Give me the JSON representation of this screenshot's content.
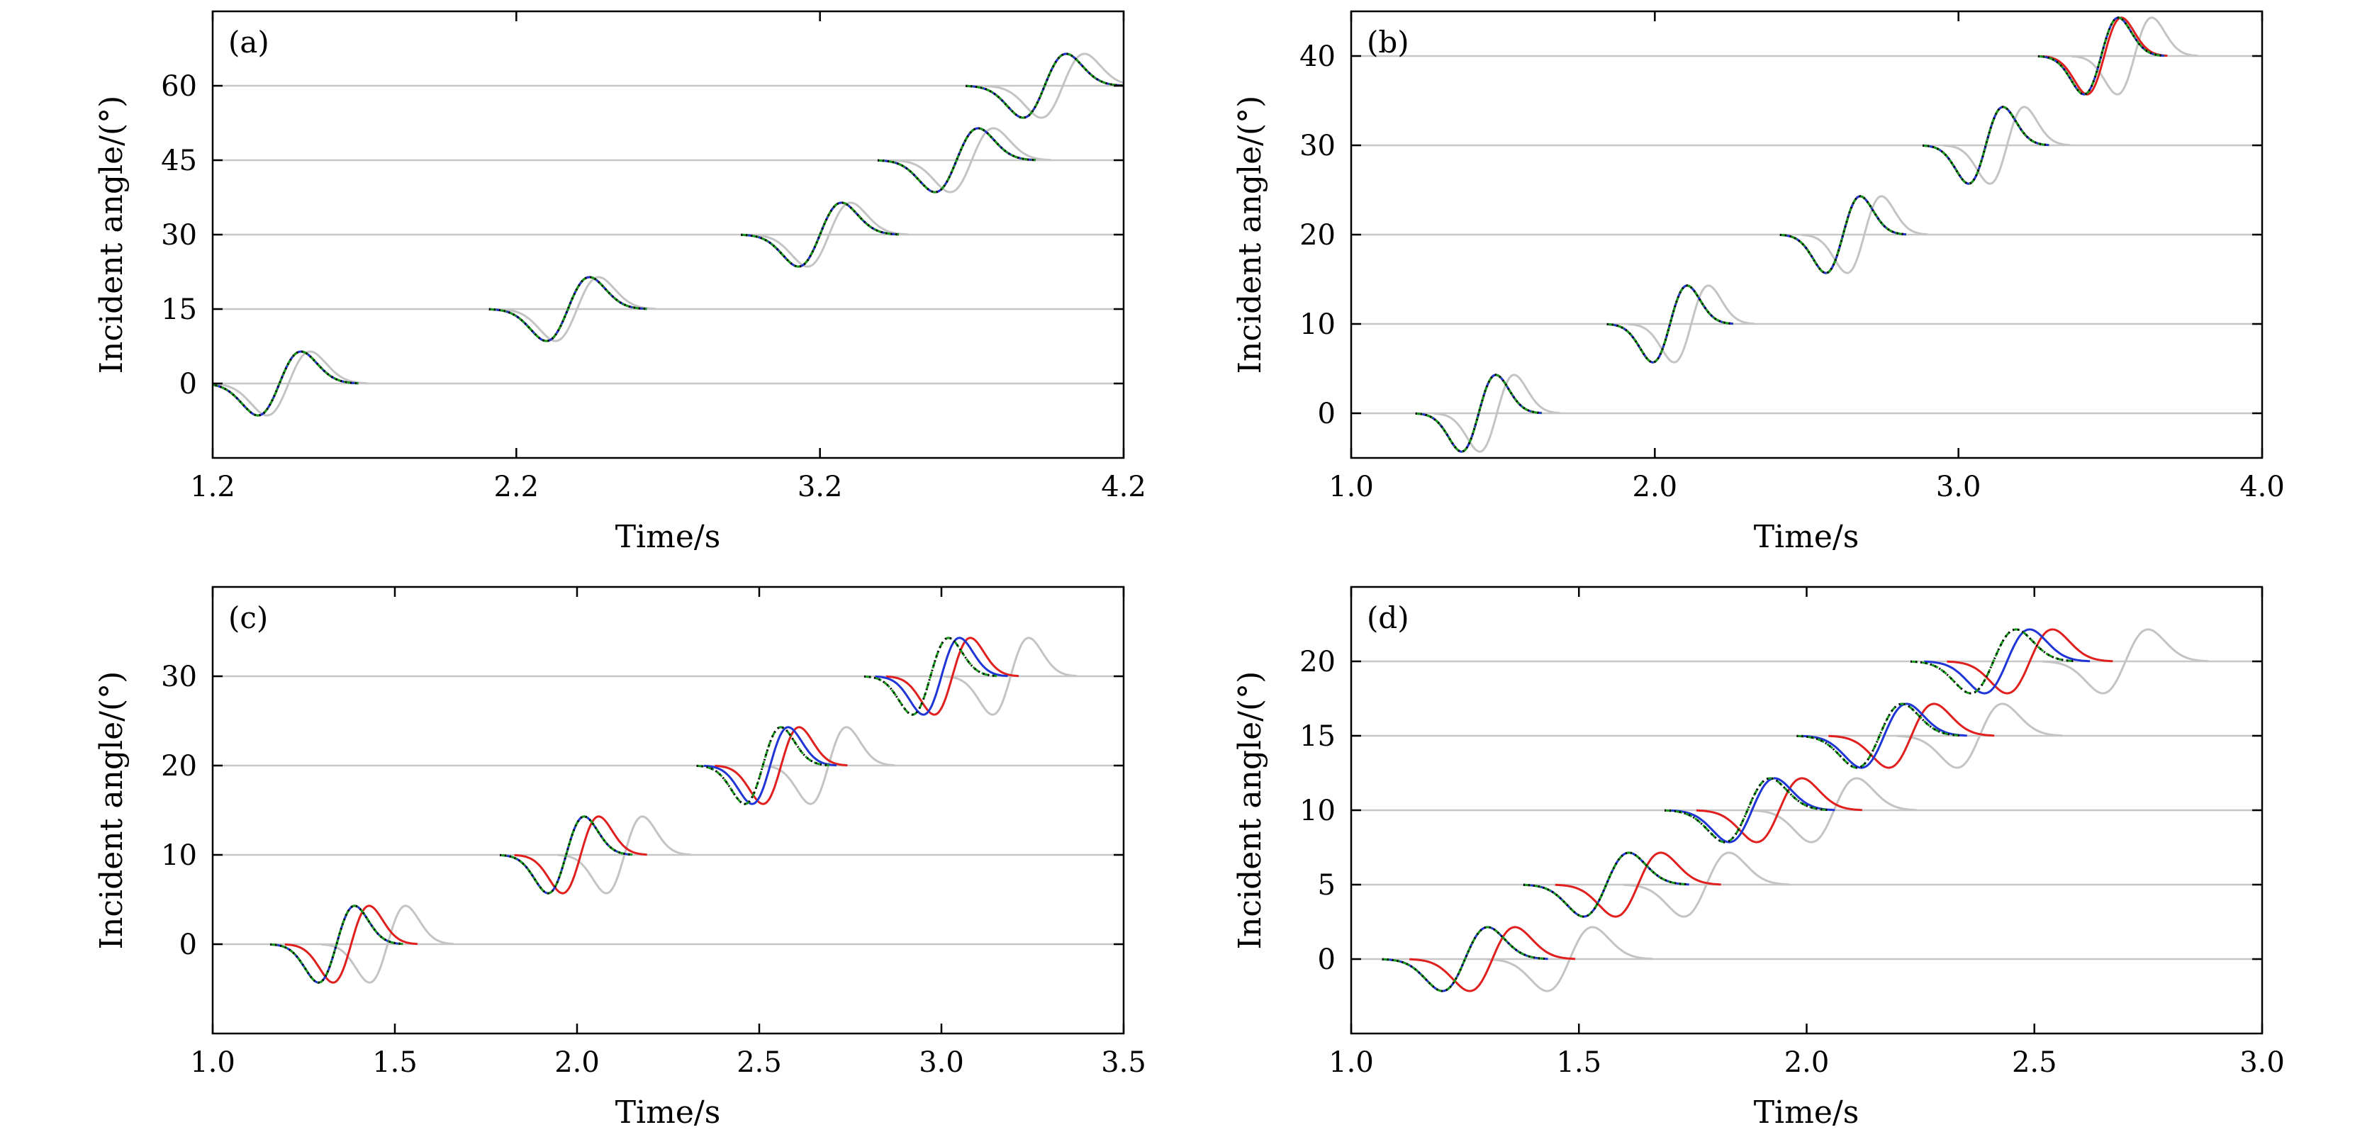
{
  "chart_data": [
    {
      "type": "line",
      "panel": "(a)",
      "xlabel": "Time/s",
      "ylabel": "Incident angle/(°)",
      "xlim": [
        1.2,
        4.2
      ],
      "ylim": [
        -15,
        75
      ],
      "xticks": [
        1.2,
        2.2,
        3.2,
        4.2
      ],
      "xtick_labels": [
        "1.2",
        "2.2",
        "3.2",
        "4.2"
      ],
      "yticks": [
        0,
        15,
        30,
        45,
        60
      ],
      "ytick_labels": [
        "0",
        "15",
        "30",
        "45",
        "60"
      ],
      "baselines": [
        0,
        15,
        30,
        45,
        60
      ],
      "amplitude": 7.5,
      "pulse_width": 0.1,
      "wavelets": {
        "black_dotted": [
          1.42,
          2.37,
          3.2,
          3.65,
          3.94
        ],
        "green_dashed": [
          1.42,
          2.37,
          3.2,
          3.65,
          3.94
        ],
        "blue": [
          1.42,
          2.37,
          3.2,
          3.65,
          3.94
        ],
        "red": [
          1.42,
          2.37,
          3.2,
          3.65,
          3.94
        ],
        "gray": [
          1.45,
          2.4,
          3.23,
          3.7,
          4.0
        ]
      },
      "grid": false
    },
    {
      "type": "line",
      "panel": "(b)",
      "xlabel": "Time/s",
      "ylabel": "Incident angle/(°)",
      "xlim": [
        1.0,
        4.0
      ],
      "ylim": [
        -5,
        45
      ],
      "xticks": [
        1.0,
        2.0,
        3.0,
        4.0
      ],
      "xtick_labels": [
        "1.0",
        "2.0",
        "3.0",
        "4.0"
      ],
      "yticks": [
        0,
        10,
        20,
        30,
        40
      ],
      "ytick_labels": [
        "0",
        "10",
        "20",
        "30",
        "40"
      ],
      "baselines": [
        0,
        10,
        20,
        30,
        40
      ],
      "amplitude": 5,
      "pulse_width": 0.08,
      "wavelets": {
        "black_dotted": [
          1.42,
          2.05,
          2.62,
          3.09,
          3.47
        ],
        "green_dashed": [
          1.42,
          2.05,
          2.62,
          3.09,
          3.47
        ],
        "blue": [
          1.42,
          2.05,
          2.62,
          3.09,
          3.47
        ],
        "red": [
          1.42,
          2.05,
          2.62,
          3.09,
          3.48
        ],
        "gray": [
          1.48,
          2.12,
          2.69,
          3.16,
          3.58
        ]
      },
      "grid": false
    },
    {
      "type": "line",
      "panel": "(c)",
      "xlabel": "Time/s",
      "ylabel": "Incident angle/(°)",
      "xlim": [
        1.0,
        3.5
      ],
      "ylim": [
        -10,
        40
      ],
      "xticks": [
        1.0,
        1.5,
        2.0,
        2.5,
        3.0,
        3.5
      ],
      "xtick_labels": [
        "1.0",
        "1.5",
        "2.0",
        "2.5",
        "3.0",
        "3.5"
      ],
      "yticks": [
        0,
        10,
        20,
        30
      ],
      "ytick_labels": [
        "0",
        "10",
        "20",
        "30"
      ],
      "baselines": [
        0,
        10,
        20,
        30
      ],
      "amplitude": 5,
      "pulse_width": 0.07,
      "wavelets": {
        "black_dotted": [
          1.34,
          1.97,
          2.51,
          2.97
        ],
        "green_dashed": [
          1.34,
          1.97,
          2.51,
          2.97
        ],
        "blue": [
          1.34,
          1.97,
          2.53,
          3.0
        ],
        "red": [
          1.38,
          2.01,
          2.56,
          3.03
        ],
        "gray": [
          1.48,
          2.13,
          2.69,
          3.19
        ]
      },
      "grid": false
    },
    {
      "type": "line",
      "panel": "(d)",
      "xlabel": "Time/s",
      "ylabel": "Incident angle/(°)",
      "xlim": [
        1.0,
        3.0
      ],
      "ylim": [
        -5,
        25
      ],
      "xticks": [
        1.0,
        1.5,
        2.0,
        2.5,
        3.0
      ],
      "xtick_labels": [
        "1.0",
        "1.5",
        "2.0",
        "2.5",
        "3.0"
      ],
      "yticks": [
        0,
        5,
        10,
        15,
        20
      ],
      "ytick_labels": [
        "0",
        "5",
        "10",
        "15",
        "20"
      ],
      "baselines": [
        0,
        5,
        10,
        15,
        20
      ],
      "amplitude": 2.5,
      "pulse_width": 0.07,
      "wavelets": {
        "black_dotted": [
          1.25,
          1.56,
          1.87,
          2.16,
          2.41
        ],
        "green_dashed": [
          1.25,
          1.56,
          1.87,
          2.16,
          2.41
        ],
        "blue": [
          1.25,
          1.56,
          1.88,
          2.17,
          2.44
        ],
        "red": [
          1.31,
          1.63,
          1.94,
          2.23,
          2.49
        ],
        "gray": [
          1.48,
          1.78,
          2.06,
          2.38,
          2.7
        ]
      },
      "grid": false
    }
  ],
  "colors": {
    "black_dotted": "#000000",
    "green_dashed": "#1a9a1a",
    "blue": "#1f35d6",
    "red": "#e0201e",
    "gray": "#c4c4c4"
  }
}
